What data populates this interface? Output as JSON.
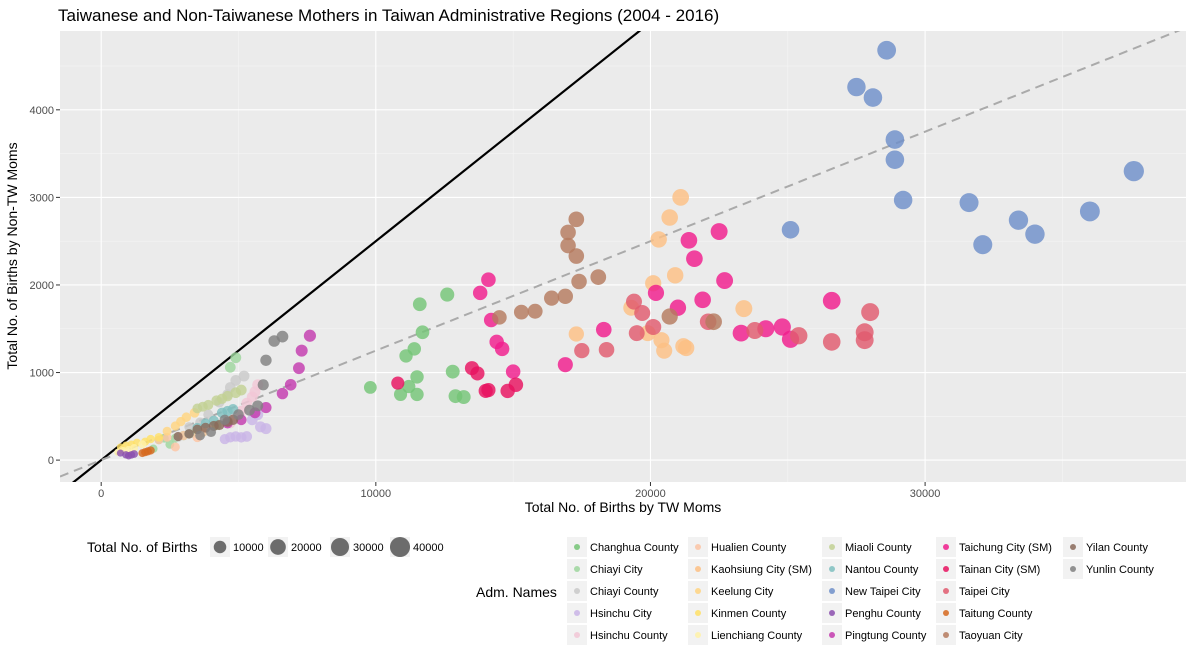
{
  "chart_data": {
    "type": "scatter",
    "title": "Taiwanese and Non-Taiwanese Mothers in Taiwan Administrative Regions (2004 - 2016)",
    "xlabel": "Total No. of Births by TW Moms",
    "ylabel": "Total No. of Births by Non-TW Moms",
    "xlim": [
      -1500,
      39500
    ],
    "ylim": [
      -250,
      4900
    ],
    "x_ticks": [
      0,
      10000,
      20000,
      30000
    ],
    "x_tick_labels": [
      "0",
      "10000",
      "20000",
      "30000"
    ],
    "y_ticks": [
      0,
      1000,
      2000,
      3000,
      4000
    ],
    "y_tick_labels": [
      "0",
      "1000",
      "2000",
      "3000",
      "4000"
    ],
    "grid": true,
    "reference_lines": [
      {
        "slope": 0.25,
        "intercept": 0,
        "style": "solid",
        "color": "#000000"
      },
      {
        "slope": 0.125,
        "intercept": 0,
        "style": "dashed",
        "color": "#aaaaaa"
      }
    ],
    "size_legend": {
      "title": "Total No. of Births",
      "values": [
        10000,
        20000,
        30000,
        40000
      ],
      "labels": [
        "10000",
        "20000",
        "30000",
        "40000"
      ]
    },
    "color_legend_title": "Adm. Names",
    "legend_placement": "bottom",
    "series": [
      {
        "name": "Changhua County",
        "color": "#74c476",
        "points": [
          [
            9800,
            830
          ],
          [
            10900,
            750
          ],
          [
            11100,
            1190
          ],
          [
            11200,
            840
          ],
          [
            11400,
            1270
          ],
          [
            11500,
            950
          ],
          [
            11500,
            750
          ],
          [
            11600,
            1780
          ],
          [
            11700,
            1460
          ],
          [
            12600,
            1890
          ],
          [
            12800,
            1010
          ],
          [
            12900,
            730
          ],
          [
            13200,
            720
          ]
        ]
      },
      {
        "name": "Chiayi City",
        "color": "#9dd69e",
        "points": [
          [
            1900,
            130
          ],
          [
            2100,
            230
          ],
          [
            2300,
            250
          ],
          [
            2500,
            180
          ],
          [
            2700,
            250
          ],
          [
            3000,
            280
          ],
          [
            3300,
            310
          ],
          [
            3700,
            320
          ],
          [
            4200,
            400
          ],
          [
            4700,
            1060
          ],
          [
            4900,
            1170
          ]
        ]
      },
      {
        "name": "Chiayi County",
        "color": "#c9c9c9",
        "points": [
          [
            2800,
            260
          ],
          [
            3200,
            380
          ],
          [
            3600,
            430
          ],
          [
            3900,
            520
          ],
          [
            4300,
            660
          ],
          [
            4600,
            750
          ],
          [
            4700,
            830
          ],
          [
            4900,
            910
          ],
          [
            5200,
            960
          ]
        ]
      },
      {
        "name": "Hsinchu City",
        "color": "#c9b4e6",
        "points": [
          [
            4500,
            240
          ],
          [
            4700,
            260
          ],
          [
            4900,
            270
          ],
          [
            5100,
            260
          ],
          [
            5300,
            270
          ],
          [
            5500,
            460
          ],
          [
            5800,
            380
          ],
          [
            6000,
            360
          ],
          [
            5700,
            520
          ]
        ]
      },
      {
        "name": "Hsinchu County",
        "color": "#f2c7d6",
        "points": [
          [
            4700,
            420
          ],
          [
            4900,
            500
          ],
          [
            5100,
            560
          ],
          [
            5300,
            650
          ],
          [
            5500,
            720
          ],
          [
            5600,
            780
          ],
          [
            5700,
            860
          ]
        ]
      },
      {
        "name": "Hualien County",
        "color": "#fcc4a4",
        "points": [
          [
            2100,
            230
          ],
          [
            2400,
            260
          ],
          [
            2700,
            150
          ],
          [
            3000,
            280
          ],
          [
            3200,
            300
          ],
          [
            3500,
            260
          ],
          [
            3700,
            320
          ]
        ]
      },
      {
        "name": "Kaohsiung City (SM)",
        "color": "#fdbf84",
        "points": [
          [
            17300,
            1440
          ],
          [
            19300,
            1740
          ],
          [
            19900,
            1450
          ],
          [
            20100,
            2020
          ],
          [
            20300,
            2520
          ],
          [
            20400,
            1370
          ],
          [
            20500,
            1250
          ],
          [
            20700,
            2770
          ],
          [
            20900,
            2110
          ],
          [
            21100,
            3000
          ],
          [
            21200,
            1300
          ],
          [
            21300,
            1280
          ],
          [
            23400,
            1730
          ]
        ]
      },
      {
        "name": "Keelung City",
        "color": "#ffd480",
        "points": [
          [
            2400,
            330
          ],
          [
            2700,
            390
          ],
          [
            2900,
            440
          ],
          [
            3100,
            490
          ],
          [
            3400,
            540
          ]
        ]
      },
      {
        "name": "Kinmen County",
        "color": "#ffe066",
        "points": [
          [
            700,
            150
          ],
          [
            900,
            170
          ],
          [
            1100,
            180
          ],
          [
            1300,
            200
          ],
          [
            1600,
            210
          ],
          [
            1800,
            240
          ],
          [
            2100,
            260
          ]
        ]
      },
      {
        "name": "Lienchiang County",
        "color": "#fff2a8",
        "points": [
          [
            600,
            90
          ],
          [
            800,
            110
          ],
          [
            1000,
            120
          ],
          [
            1200,
            140
          ],
          [
            1500,
            180
          ]
        ]
      },
      {
        "name": "Miaoli County",
        "color": "#c2d194",
        "points": [
          [
            3500,
            590
          ],
          [
            3700,
            610
          ],
          [
            3900,
            630
          ],
          [
            4200,
            680
          ],
          [
            4400,
            700
          ],
          [
            4600,
            730
          ],
          [
            4900,
            770
          ],
          [
            5100,
            800
          ]
        ]
      },
      {
        "name": "Nantou County",
        "color": "#7fbfbf",
        "points": [
          [
            3200,
            300
          ],
          [
            3500,
            370
          ],
          [
            3800,
            420
          ],
          [
            4100,
            450
          ],
          [
            4400,
            540
          ],
          [
            4600,
            560
          ],
          [
            4800,
            580
          ]
        ]
      },
      {
        "name": "New Taipei City",
        "color": "#6e8fc9",
        "points": [
          [
            25100,
            2630
          ],
          [
            27500,
            4260
          ],
          [
            28100,
            4140
          ],
          [
            28600,
            4680
          ],
          [
            28900,
            3660
          ],
          [
            28900,
            3430
          ],
          [
            29200,
            2970
          ],
          [
            31600,
            2940
          ],
          [
            32100,
            2460
          ],
          [
            33400,
            2740
          ],
          [
            34000,
            2580
          ],
          [
            36000,
            2840
          ],
          [
            37600,
            3300
          ]
        ]
      },
      {
        "name": "Penghu County",
        "color": "#8b4fae",
        "points": [
          [
            700,
            80
          ],
          [
            900,
            60
          ],
          [
            1000,
            50
          ],
          [
            1100,
            60
          ],
          [
            1200,
            70
          ]
        ]
      },
      {
        "name": "Pingtung County",
        "color": "#c33bae",
        "points": [
          [
            4600,
            420
          ],
          [
            5100,
            460
          ],
          [
            5600,
            540
          ],
          [
            6000,
            600
          ],
          [
            6600,
            760
          ],
          [
            6900,
            860
          ],
          [
            7200,
            1050
          ],
          [
            7300,
            1250
          ],
          [
            7600,
            1420
          ]
        ]
      },
      {
        "name": "Taichung City (SM)",
        "color": "#f01c8c",
        "points": [
          [
            13800,
            1910
          ],
          [
            14100,
            2060
          ],
          [
            14200,
            1600
          ],
          [
            14400,
            1350
          ],
          [
            14600,
            1270
          ],
          [
            15000,
            1010
          ],
          [
            16900,
            1090
          ],
          [
            18300,
            1490
          ],
          [
            20200,
            1910
          ],
          [
            21000,
            1740
          ],
          [
            21400,
            2510
          ],
          [
            21600,
            2300
          ],
          [
            21900,
            1830
          ],
          [
            22500,
            2610
          ],
          [
            22700,
            2050
          ],
          [
            23300,
            1450
          ],
          [
            24200,
            1500
          ],
          [
            24800,
            1520
          ],
          [
            25100,
            1380
          ],
          [
            26600,
            1820
          ]
        ]
      },
      {
        "name": "Tainan City (SM)",
        "color": "#e8115f",
        "points": [
          [
            10800,
            880
          ],
          [
            13500,
            1050
          ],
          [
            13700,
            990
          ],
          [
            14000,
            790
          ],
          [
            14100,
            800
          ],
          [
            14800,
            790
          ],
          [
            15100,
            860
          ]
        ]
      },
      {
        "name": "Taipei City",
        "color": "#e05a6e",
        "points": [
          [
            17500,
            1250
          ],
          [
            18400,
            1260
          ],
          [
            19400,
            1810
          ],
          [
            19500,
            1450
          ],
          [
            19700,
            1680
          ],
          [
            20100,
            1520
          ],
          [
            22100,
            1580
          ],
          [
            23800,
            1480
          ],
          [
            25400,
            1420
          ],
          [
            26600,
            1350
          ],
          [
            27800,
            1460
          ],
          [
            27800,
            1370
          ],
          [
            28000,
            1690
          ]
        ]
      },
      {
        "name": "Taitung County",
        "color": "#d6691f",
        "points": [
          [
            1500,
            80
          ],
          [
            1600,
            90
          ],
          [
            1700,
            100
          ],
          [
            1800,
            110
          ]
        ]
      },
      {
        "name": "Taoyuan City",
        "color": "#b57a5e",
        "points": [
          [
            14500,
            1630
          ],
          [
            15300,
            1690
          ],
          [
            15800,
            1700
          ],
          [
            16400,
            1850
          ],
          [
            16900,
            1870
          ],
          [
            17000,
            2600
          ],
          [
            17000,
            2450
          ],
          [
            17300,
            2750
          ],
          [
            17300,
            2330
          ],
          [
            17400,
            2040
          ],
          [
            18100,
            2090
          ],
          [
            20700,
            1640
          ],
          [
            22300,
            1580
          ]
        ]
      },
      {
        "name": "Yilan County",
        "color": "#8a6a5a",
        "points": [
          [
            2800,
            270
          ],
          [
            3200,
            300
          ],
          [
            3500,
            350
          ],
          [
            3800,
            370
          ],
          [
            4100,
            390
          ],
          [
            4300,
            400
          ],
          [
            4600,
            440
          ],
          [
            4800,
            460
          ]
        ]
      },
      {
        "name": "Yunlin County",
        "color": "#808080",
        "points": [
          [
            3600,
            280
          ],
          [
            4000,
            320
          ],
          [
            4500,
            460
          ],
          [
            5000,
            520
          ],
          [
            5400,
            570
          ],
          [
            5700,
            620
          ],
          [
            5900,
            860
          ],
          [
            6000,
            1140
          ],
          [
            6300,
            1360
          ],
          [
            6600,
            1410
          ]
        ]
      }
    ]
  }
}
